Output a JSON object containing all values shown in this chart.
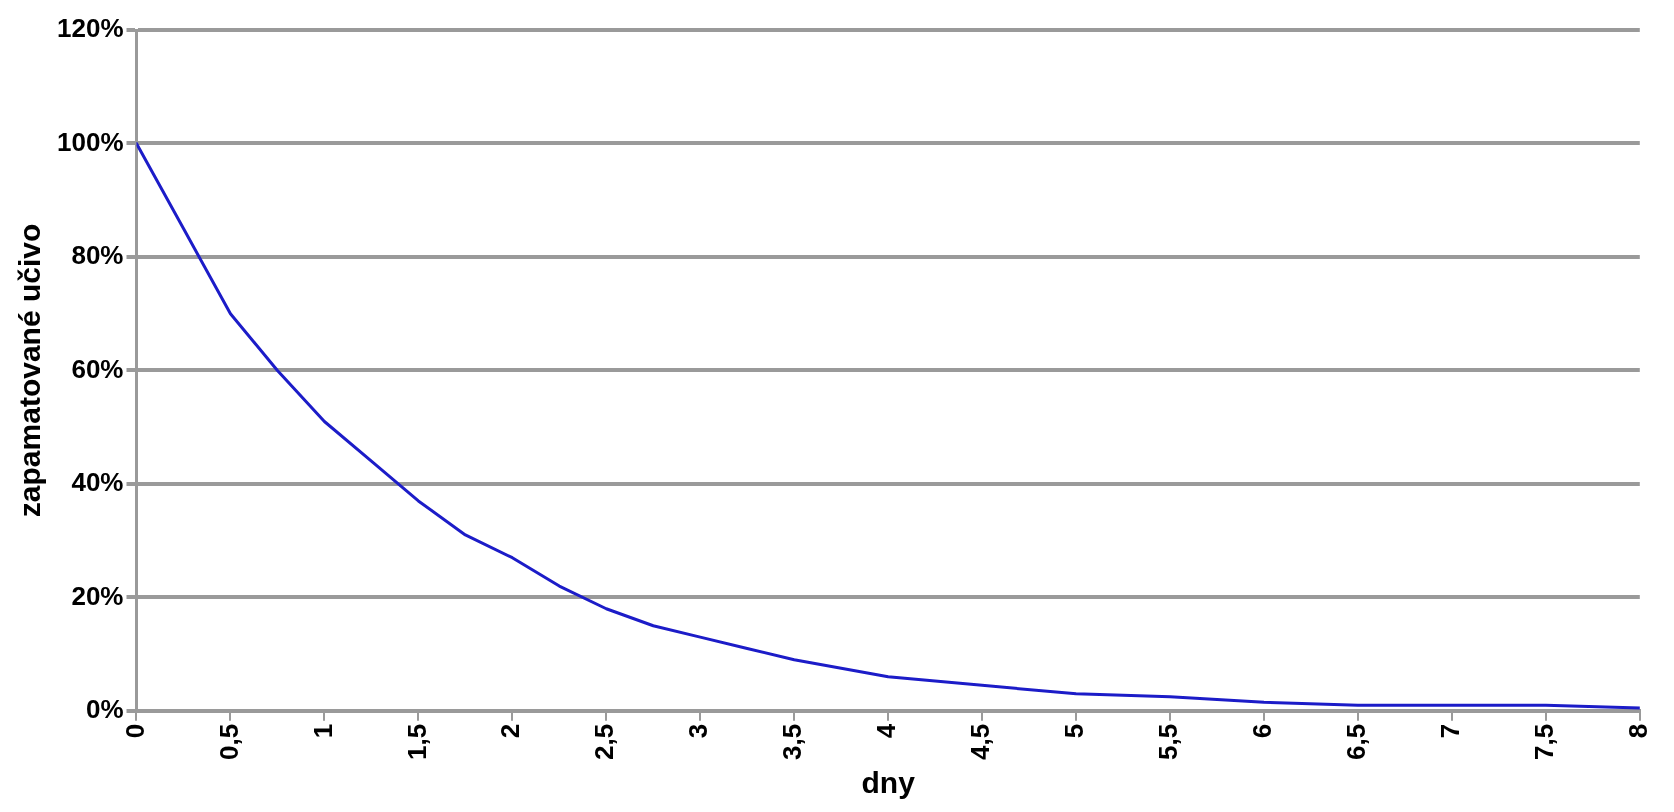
{
  "chart_data": {
    "type": "line",
    "xlabel": "dny",
    "ylabel": "zapamatované učivo",
    "series": [
      {
        "color": "#1c1cc8",
        "x": [
          0,
          0.25,
          0.5,
          0.75,
          1,
          1.25,
          1.5,
          1.75,
          2,
          2.25,
          2.5,
          2.75,
          3,
          3.25,
          3.5,
          3.75,
          4,
          4.5,
          5,
          5.5,
          6,
          6.5,
          7,
          7.5,
          8
        ],
        "values": [
          100,
          85,
          70,
          60,
          51,
          44,
          37,
          31,
          27,
          22,
          18,
          15,
          13,
          11,
          9,
          7.5,
          6,
          4.5,
          3,
          2.5,
          1.5,
          1,
          1,
          1,
          0.5
        ]
      }
    ],
    "xlim": [
      0,
      8
    ],
    "xticks": [
      0,
      {
        "value": 0.5,
        "label": "0,5"
      },
      1,
      {
        "value": 1.5,
        "label": "1,5"
      },
      2,
      {
        "value": 2.5,
        "label": "2,5"
      },
      3,
      {
        "value": 3.5,
        "label": "3,5"
      },
      4,
      {
        "value": 4.5,
        "label": "4,5"
      },
      5,
      {
        "value": 5.5,
        "label": "5,5"
      },
      6,
      {
        "value": 6.5,
        "label": "6,5"
      },
      7,
      {
        "value": 7.5,
        "label": "7,5"
      },
      8
    ],
    "ylim": [
      0,
      120
    ],
    "yticks": [
      {
        "value": 0,
        "label": "0%"
      },
      {
        "value": 20,
        "label": "20%"
      },
      {
        "value": 40,
        "label": "40%"
      },
      {
        "value": 60,
        "label": "60%"
      },
      {
        "value": 80,
        "label": "80%"
      },
      {
        "value": 100,
        "label": "100%"
      },
      {
        "value": 120,
        "label": "120%"
      }
    ],
    "grid": "y",
    "legend": false,
    "marker": "none",
    "line_style": "solid"
  }
}
